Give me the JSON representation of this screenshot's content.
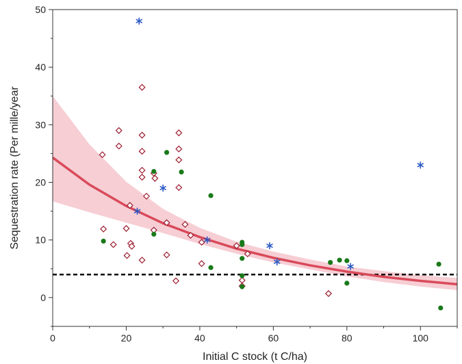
{
  "chart_data": {
    "type": "scatter",
    "title": "",
    "xlabel": "Initial C stock (t C/ha)",
    "ylabel": "Sequestration rate (Per mille/year",
    "xlim": [
      0,
      110
    ],
    "ylim": [
      -5,
      50
    ],
    "xticks": [
      0,
      20,
      40,
      60,
      80,
      100
    ],
    "yticks": [
      0,
      10,
      20,
      30,
      40,
      50
    ],
    "grid": false,
    "legend": "none",
    "series": [
      {
        "marker": "open-diamond",
        "color": "#9b1c2e",
        "points": [
          [
            13.5,
            24.8
          ],
          [
            13.8,
            11.9
          ],
          [
            16.5,
            9.2
          ],
          [
            18,
            29
          ],
          [
            18,
            26.3
          ],
          [
            20,
            12
          ],
          [
            20.2,
            7.3
          ],
          [
            21,
            16
          ],
          [
            21.2,
            9.4
          ],
          [
            21.5,
            8.9
          ],
          [
            24.3,
            36.5
          ],
          [
            24.3,
            28.2
          ],
          [
            24.3,
            25.4
          ],
          [
            24.3,
            22.1
          ],
          [
            24.3,
            20.9
          ],
          [
            24.3,
            6.5
          ],
          [
            25.5,
            17.6
          ],
          [
            27.5,
            21.6
          ],
          [
            27.8,
            20.7
          ],
          [
            27.5,
            11.7
          ],
          [
            31,
            13
          ],
          [
            31,
            7.4
          ],
          [
            33.5,
            2.9
          ],
          [
            34.3,
            28.6
          ],
          [
            34.3,
            25.8
          ],
          [
            34.3,
            23.9
          ],
          [
            34.3,
            19.1
          ],
          [
            36,
            12.7
          ],
          [
            37.5,
            10.8
          ],
          [
            40.5,
            9.6
          ],
          [
            40.5,
            5.9
          ],
          [
            50,
            9
          ],
          [
            51.5,
            3
          ],
          [
            51.5,
            2
          ],
          [
            53,
            7.6
          ],
          [
            75,
            0.7
          ]
        ]
      },
      {
        "marker": "filled-circle",
        "color": "#1a7a1a",
        "points": [
          [
            13.8,
            9.8
          ],
          [
            27.5,
            21.9
          ],
          [
            27.5,
            11
          ],
          [
            31,
            25.2
          ],
          [
            35,
            21.8
          ],
          [
            43,
            17.7
          ],
          [
            43,
            5.2
          ],
          [
            51.5,
            9.6
          ],
          [
            51.5,
            9.2
          ],
          [
            51.5,
            6.8
          ],
          [
            51.5,
            3.8
          ],
          [
            51.5,
            1.9
          ],
          [
            75.5,
            6.1
          ],
          [
            78,
            6.5
          ],
          [
            80,
            6.4
          ],
          [
            80,
            2.5
          ],
          [
            105,
            5.8
          ],
          [
            105.5,
            -1.8
          ]
        ]
      },
      {
        "marker": "asterisk",
        "color": "#2b59c3",
        "points": [
          [
            23.5,
            48
          ],
          [
            23,
            15
          ],
          [
            30,
            19
          ],
          [
            42,
            10
          ],
          [
            59,
            9
          ],
          [
            61,
            6.2
          ],
          [
            81,
            5.4
          ],
          [
            100,
            23
          ]
        ]
      }
    ],
    "fit": {
      "color": "#d94a5a",
      "band_color": "#f5c6cc",
      "x": [
        0,
        10,
        20,
        30,
        40,
        50,
        60,
        70,
        80,
        90,
        100,
        110
      ],
      "y": [
        24.3,
        19.6,
        15.9,
        12.9,
        10.5,
        8.5,
        6.9,
        5.6,
        4.5,
        3.6,
        2.9,
        2.3
      ],
      "lower": [
        16.7,
        14.8,
        13.0,
        11.2,
        9.3,
        7.6,
        6.1,
        4.9,
        3.7,
        2.7,
        1.9,
        1.3
      ],
      "upper": [
        35.0,
        26.6,
        20.1,
        15.4,
        12.1,
        9.7,
        8.0,
        6.6,
        5.4,
        4.6,
        3.9,
        3.4
      ]
    },
    "reference_line": {
      "y": 4,
      "style": "dashed",
      "color": "#000000"
    }
  }
}
